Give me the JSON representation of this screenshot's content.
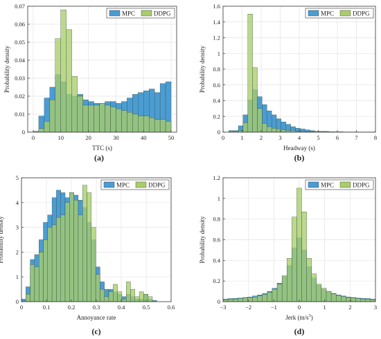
{
  "figure": {
    "colors": {
      "mpc": "#4b9cd3",
      "ddpg": "#a9cd6b",
      "overlap": "#5fa464",
      "grid": "#e3e3e3"
    }
  },
  "chart_data": [
    {
      "type": "bar",
      "panel": "(a)",
      "caption": "(a)",
      "xlabel": "TTC (s)",
      "ylabel": "Probability density",
      "xlim": [
        -2,
        52
      ],
      "ylim": [
        0,
        0.07
      ],
      "xticks": [
        "0",
        "10",
        "20",
        "30",
        "40",
        "50"
      ],
      "xtick_values": [
        0,
        10,
        20,
        30,
        40,
        50
      ],
      "yticks": [
        "0",
        "0.01",
        "0.02",
        "0.03",
        "0.04",
        "0.05",
        "0.06",
        "0.07"
      ],
      "ytick_values": [
        0,
        0.01,
        0.02,
        0.03,
        0.04,
        0.05,
        0.06,
        0.07
      ],
      "grid": true,
      "legend_position": "top-right",
      "bin_start": 0,
      "bin_width": 2,
      "series": [
        {
          "name": "MPC",
          "values": [
            0.0005,
            0.009,
            0.019,
            0.025,
            0.032,
            0.028,
            0.021,
            0.02,
            0.021,
            0.018,
            0.017,
            0.016,
            0.016,
            0.017,
            0.017,
            0.016,
            0.017,
            0.019,
            0.021,
            0.022,
            0.023,
            0.024,
            0.022,
            0.027,
            0.028
          ]
        },
        {
          "name": "DDPG",
          "values": [
            0.0005,
            0.002,
            0.006,
            0.018,
            0.052,
            0.068,
            0.057,
            0.031,
            0.02,
            0.015,
            0.015,
            0.015,
            0.016,
            0.015,
            0.014,
            0.013,
            0.012,
            0.011,
            0.01,
            0.009,
            0.009,
            0.008,
            0.007,
            0.007,
            0.006
          ]
        }
      ]
    },
    {
      "type": "bar",
      "panel": "(b)",
      "caption": "(b)",
      "xlabel": "Headway (s)",
      "ylabel": "Probability density",
      "xlim": [
        0,
        8
      ],
      "ylim": [
        0,
        1.6
      ],
      "xticks": [
        "0",
        "1",
        "2",
        "3",
        "4",
        "5",
        "6",
        "7",
        "8"
      ],
      "xtick_values": [
        0,
        1,
        2,
        3,
        4,
        5,
        6,
        7,
        8
      ],
      "yticks": [
        "0",
        "0.2",
        "0.4",
        "0.6",
        "0.8",
        "1",
        "1.2",
        "1.4",
        "1.6"
      ],
      "ytick_values": [
        0,
        0.2,
        0.4,
        0.6,
        0.8,
        1,
        1.2,
        1.4,
        1.6
      ],
      "grid": true,
      "legend_position": "top-right",
      "bin_start": 0.3,
      "bin_width": 0.25,
      "series": [
        {
          "name": "MPC",
          "values": [
            0.02,
            0.02,
            0.08,
            0.22,
            0.41,
            0.54,
            0.45,
            0.35,
            0.27,
            0.22,
            0.17,
            0.13,
            0.1,
            0.07,
            0.05,
            0.04,
            0.03,
            0.02,
            0.01,
            0.01,
            0.01,
            0.005,
            0.005,
            0.005,
            0.003,
            0.003,
            0.002,
            0.002,
            0.002,
            0.002,
            0.002
          ]
        },
        {
          "name": "DDPG",
          "values": [
            0.0,
            0.0,
            0.02,
            0.12,
            1.5,
            0.82,
            0.3,
            0.11,
            0.07,
            0.05,
            0.04,
            0.03,
            0.02,
            0.02,
            0.01,
            0.01,
            0.005,
            0.005,
            0.003,
            0.002,
            0.002,
            0.002,
            0.0,
            0.0,
            0.0,
            0.0,
            0.0,
            0.0,
            0.0,
            0.0,
            0.0
          ]
        }
      ]
    },
    {
      "type": "bar",
      "panel": "(c)",
      "caption": "(c)",
      "xlabel": "Annoyance rate",
      "ylabel": "Probability density",
      "xlim": [
        0,
        0.6
      ],
      "ylim": [
        0,
        5
      ],
      "xticks": [
        "0",
        "0.1",
        "0.2",
        "0.3",
        "0.4",
        "0.5",
        "0.6"
      ],
      "xtick_values": [
        0,
        0.1,
        0.2,
        0.3,
        0.4,
        0.5,
        0.6
      ],
      "yticks": [
        "0",
        "1",
        "2",
        "3",
        "4",
        "5"
      ],
      "ytick_values": [
        0,
        1,
        2,
        3,
        4,
        5
      ],
      "grid": true,
      "legend_position": "top-right",
      "bin_start": 0.0,
      "bin_width": 0.0175,
      "series": [
        {
          "name": "MPC",
          "values": [
            0.1,
            0.6,
            1.7,
            1.9,
            2.5,
            3.2,
            3.5,
            4.2,
            4.5,
            4.4,
            4.2,
            4.4,
            4.3,
            4.1,
            3.8,
            3.2,
            2.5,
            1.4,
            0.8,
            0.5,
            0.5,
            0.4,
            0.3,
            0.2,
            0.3,
            0.2,
            0.1,
            0.1,
            0.3,
            0.1,
            0.05
          ]
        },
        {
          "name": "DDPG",
          "values": [
            0.0,
            0.3,
            1.5,
            1.4,
            2.0,
            2.5,
            3.0,
            3.1,
            3.4,
            3.5,
            4.0,
            4.4,
            4.1,
            3.5,
            4.7,
            4.4,
            3.0,
            1.1,
            0.5,
            0.2,
            0.4,
            0.7,
            0.4,
            0.1,
            0.8,
            0.5,
            0.2,
            0.4,
            0.3,
            0.2,
            0.0
          ]
        }
      ]
    },
    {
      "type": "bar",
      "panel": "(d)",
      "caption": "(d)",
      "xlabel": "Jerk (m/s",
      "xlabel_sup": "3",
      "xlabel_end": ")",
      "ylabel": "Probability density",
      "xlim": [
        -3,
        3
      ],
      "ylim": [
        0,
        1.2
      ],
      "xticks": [
        "−3",
        "−2",
        "−1",
        "0",
        "1",
        "2",
        "3"
      ],
      "xtick_values": [
        -3,
        -2,
        -1,
        0,
        1,
        2,
        3
      ],
      "yticks": [
        "0",
        "0.2",
        "0.4",
        "0.6",
        "0.8",
        "1",
        "1.2"
      ],
      "ytick_values": [
        0,
        0.2,
        0.4,
        0.6,
        0.8,
        1,
        1.2
      ],
      "grid": true,
      "legend_position": "top-right",
      "bin_start": -3.0,
      "bin_width": 0.1935,
      "series": [
        {
          "name": "MPC",
          "values": [
            0.025,
            0.03,
            0.032,
            0.035,
            0.04,
            0.045,
            0.055,
            0.065,
            0.08,
            0.1,
            0.13,
            0.18,
            0.25,
            0.35,
            0.52,
            0.62,
            0.5,
            0.34,
            0.23,
            0.16,
            0.12,
            0.1,
            0.08,
            0.065,
            0.055,
            0.045,
            0.04,
            0.035,
            0.032,
            0.03,
            0.025
          ]
        },
        {
          "name": "DDPG",
          "values": [
            0.02,
            0.022,
            0.025,
            0.03,
            0.035,
            0.04,
            0.045,
            0.055,
            0.07,
            0.09,
            0.12,
            0.17,
            0.25,
            0.42,
            0.82,
            1.1,
            0.87,
            0.42,
            0.27,
            0.17,
            0.13,
            0.1,
            0.075,
            0.06,
            0.05,
            0.04,
            0.035,
            0.03,
            0.025,
            0.022,
            0.02
          ]
        }
      ]
    }
  ]
}
